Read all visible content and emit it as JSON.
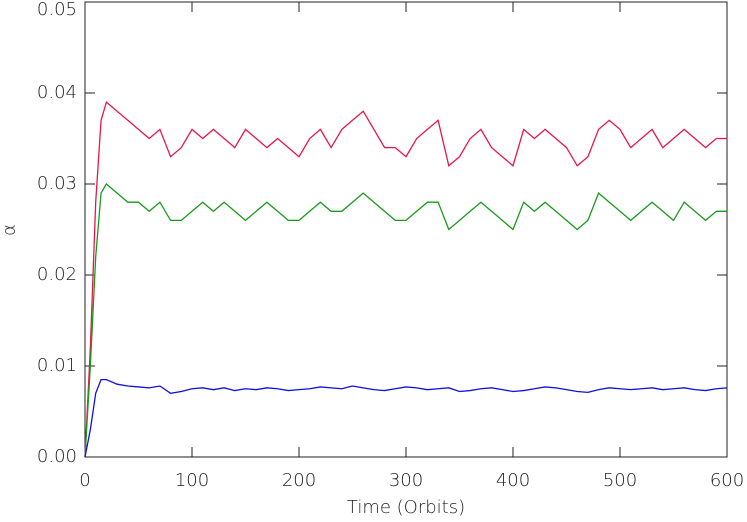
{
  "chart_data": {
    "type": "line",
    "x_label": "Time (Orbits)",
    "y_label": "α",
    "xlim": [
      0,
      600
    ],
    "xticks": [
      0,
      100,
      200,
      300,
      400,
      500,
      600
    ],
    "ylim": [
      0,
      0.05
    ],
    "yticks": [
      {
        "value": 0,
        "label": "0.00"
      },
      0.01,
      0.02,
      0.03,
      0.04,
      0.05
    ],
    "x": [
      0,
      5,
      10,
      15,
      20,
      30,
      40,
      50,
      60,
      70,
      80,
      90,
      100,
      110,
      120,
      130,
      140,
      150,
      160,
      170,
      180,
      190,
      200,
      210,
      220,
      230,
      240,
      250,
      260,
      270,
      280,
      290,
      300,
      310,
      320,
      330,
      340,
      350,
      360,
      370,
      380,
      390,
      400,
      410,
      420,
      430,
      440,
      450,
      460,
      470,
      480,
      490,
      500,
      510,
      520,
      530,
      540,
      550,
      560,
      570,
      580,
      590,
      600
    ],
    "series": [
      {
        "color": "#e8174a",
        "values": [
          0,
          0.012,
          0.028,
          0.037,
          0.039,
          0.038,
          0.037,
          0.036,
          0.035,
          0.036,
          0.033,
          0.034,
          0.036,
          0.035,
          0.036,
          0.035,
          0.034,
          0.036,
          0.035,
          0.034,
          0.035,
          0.034,
          0.033,
          0.035,
          0.036,
          0.034,
          0.036,
          0.037,
          0.038,
          0.036,
          0.034,
          0.034,
          0.033,
          0.035,
          0.036,
          0.037,
          0.032,
          0.033,
          0.035,
          0.036,
          0.034,
          0.033,
          0.032,
          0.036,
          0.035,
          0.036,
          0.035,
          0.034,
          0.032,
          0.033,
          0.036,
          0.037,
          0.036,
          0.034,
          0.035,
          0.036,
          0.034,
          0.035,
          0.036,
          0.035,
          0.034,
          0.035,
          0.035
        ]
      },
      {
        "color": "#1a9a1a",
        "values": [
          0,
          0.01,
          0.022,
          0.029,
          0.03,
          0.029,
          0.028,
          0.028,
          0.027,
          0.028,
          0.026,
          0.026,
          0.027,
          0.028,
          0.027,
          0.028,
          0.027,
          0.026,
          0.027,
          0.028,
          0.027,
          0.026,
          0.026,
          0.027,
          0.028,
          0.027,
          0.027,
          0.028,
          0.029,
          0.028,
          0.027,
          0.026,
          0.026,
          0.027,
          0.028,
          0.028,
          0.025,
          0.026,
          0.027,
          0.028,
          0.027,
          0.026,
          0.025,
          0.028,
          0.027,
          0.028,
          0.027,
          0.026,
          0.025,
          0.026,
          0.029,
          0.028,
          0.027,
          0.026,
          0.027,
          0.028,
          0.027,
          0.026,
          0.028,
          0.027,
          0.026,
          0.027,
          0.027
        ]
      },
      {
        "color": "#1010e0",
        "values": [
          0,
          0.003,
          0.007,
          0.0085,
          0.0085,
          0.008,
          0.0078,
          0.0077,
          0.0076,
          0.0078,
          0.007,
          0.0072,
          0.0075,
          0.0076,
          0.0074,
          0.0076,
          0.0073,
          0.0075,
          0.0074,
          0.0076,
          0.0075,
          0.0073,
          0.0074,
          0.0075,
          0.0077,
          0.0076,
          0.0075,
          0.0078,
          0.0076,
          0.0074,
          0.0073,
          0.0075,
          0.0077,
          0.0076,
          0.0074,
          0.0075,
          0.0076,
          0.0072,
          0.0073,
          0.0075,
          0.0076,
          0.0074,
          0.0072,
          0.0073,
          0.0075,
          0.0077,
          0.0076,
          0.0074,
          0.0072,
          0.0071,
          0.0074,
          0.0076,
          0.0075,
          0.0074,
          0.0075,
          0.0076,
          0.0074,
          0.0075,
          0.0076,
          0.0074,
          0.0073,
          0.0075,
          0.0076
        ]
      }
    ]
  }
}
